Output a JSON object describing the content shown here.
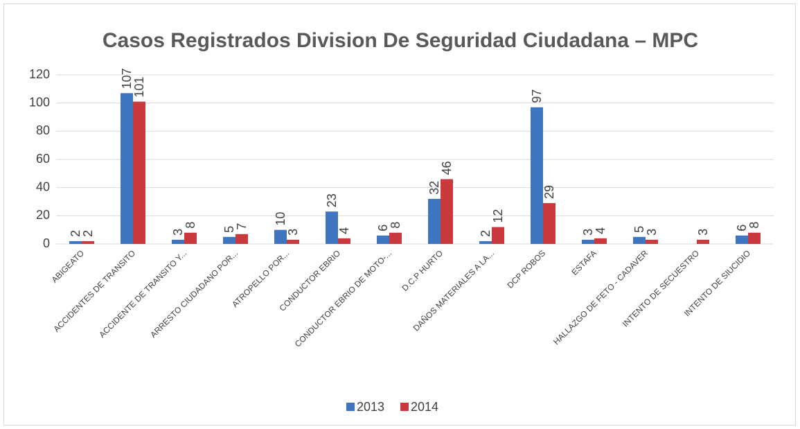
{
  "chart_data": {
    "type": "bar",
    "title": "Casos Registrados Division De Seguridad Ciudadana – MPC",
    "categories": [
      "ABIGEATO",
      "ACCIDENTES DE TRANSITO",
      "ACCIDENTE DE TRANSITO Y...",
      "ARRESTO CIUDADANO POR...",
      "ATROPELLO POR...",
      "CONDUCTOR EBRIO",
      "CONDUCTOR EBRIO DE MOTO-...",
      "D.C.P HURTO",
      "DAÑOS MATERIALES A LA...",
      "DCP ROBOS",
      "ESTAFA",
      "HALLAZGO DE FETO - CADAVER",
      "INTENTO DE SECUESTRO",
      "INTENTO DE SIUCIDIO"
    ],
    "series": [
      {
        "name": "2013",
        "color": "#3e74c0",
        "values": [
          2,
          107,
          3,
          5,
          10,
          23,
          6,
          32,
          2,
          97,
          3,
          5,
          null,
          6
        ]
      },
      {
        "name": "2014",
        "color": "#c83a3d",
        "values": [
          2,
          101,
          8,
          7,
          3,
          4,
          8,
          46,
          12,
          29,
          4,
          3,
          3,
          8
        ]
      }
    ],
    "ylim": [
      0,
      120
    ],
    "yticks": [
      0,
      20,
      40,
      60,
      80,
      100,
      120
    ],
    "grid": true,
    "legend": "bottom"
  }
}
